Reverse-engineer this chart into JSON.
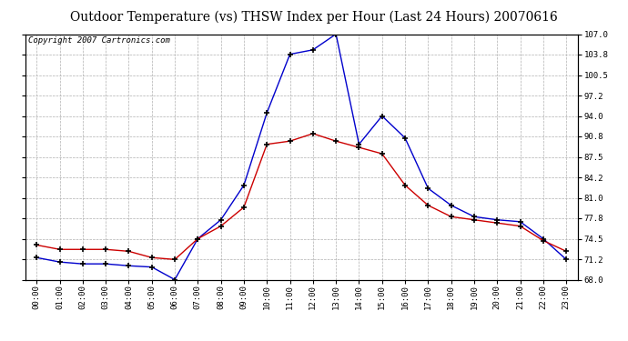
{
  "title": "Outdoor Temperature (vs) THSW Index per Hour (Last 24 Hours) 20070616",
  "copyright_text": "Copyright 2007 Cartronics.com",
  "hours": [
    0,
    1,
    2,
    3,
    4,
    5,
    6,
    7,
    8,
    9,
    10,
    11,
    12,
    13,
    14,
    15,
    16,
    17,
    18,
    19,
    20,
    21,
    22,
    23
  ],
  "hour_labels": [
    "00:00",
    "01:00",
    "02:00",
    "03:00",
    "04:00",
    "05:00",
    "06:00",
    "07:00",
    "08:00",
    "09:00",
    "10:00",
    "11:00",
    "12:00",
    "13:00",
    "14:00",
    "15:00",
    "16:00",
    "17:00",
    "18:00",
    "19:00",
    "20:00",
    "21:00",
    "22:00",
    "23:00"
  ],
  "temp_red": [
    73.5,
    72.8,
    72.8,
    72.8,
    72.5,
    71.5,
    71.2,
    74.5,
    76.5,
    79.5,
    89.5,
    90.0,
    91.2,
    90.0,
    89.0,
    88.0,
    83.0,
    79.8,
    78.0,
    77.5,
    77.0,
    76.5,
    74.2,
    72.5
  ],
  "thsw_blue": [
    71.5,
    70.8,
    70.5,
    70.5,
    70.2,
    70.0,
    68.0,
    74.5,
    77.5,
    83.0,
    94.5,
    103.8,
    104.5,
    107.0,
    89.5,
    94.0,
    90.5,
    82.5,
    79.8,
    78.0,
    77.5,
    77.2,
    74.5,
    71.2
  ],
  "ylim_min": 68.0,
  "ylim_max": 107.0,
  "yticks": [
    68.0,
    71.2,
    74.5,
    77.8,
    81.0,
    84.2,
    87.5,
    90.8,
    94.0,
    97.2,
    100.5,
    103.8,
    107.0
  ],
  "ytick_labels": [
    "68.0",
    "71.2",
    "74.5",
    "77.8",
    "81.0",
    "84.2",
    "87.5",
    "90.8",
    "94.0",
    "97.2",
    "100.5",
    "103.8",
    "107.0"
  ],
  "red_color": "#cc0000",
  "blue_color": "#0000cc",
  "grid_color": "#b0b0b0",
  "background_color": "#ffffff",
  "title_fontsize": 10,
  "copyright_fontsize": 6.5,
  "tick_fontsize": 6.5,
  "marker": "+",
  "marker_color": "#000000",
  "marker_size": 4,
  "linewidth": 1.0
}
